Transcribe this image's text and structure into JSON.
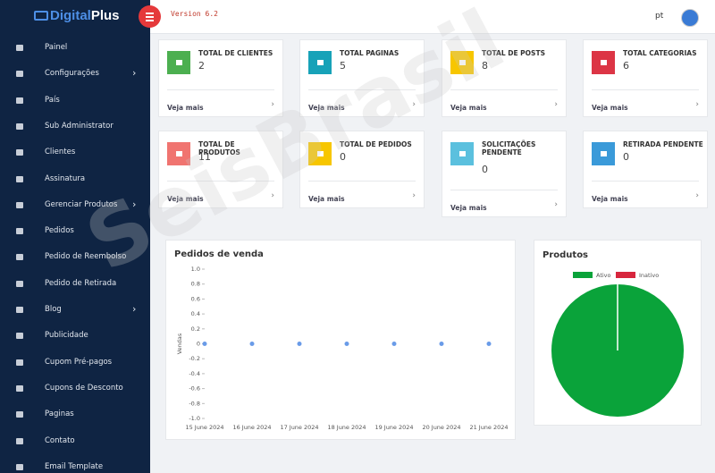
{
  "brand": {
    "name_a": "Digital",
    "name_b": "Plus"
  },
  "header": {
    "version": "Version 6.2",
    "language": "pt"
  },
  "watermark": "SeisBrasil",
  "sidebar": {
    "items": [
      {
        "label": "Painel",
        "submenu": false
      },
      {
        "label": "Configurações",
        "submenu": true
      },
      {
        "label": "País",
        "submenu": false
      },
      {
        "label": "Sub Administrator",
        "submenu": false
      },
      {
        "label": "Clientes",
        "submenu": false
      },
      {
        "label": "Assinatura",
        "submenu": false
      },
      {
        "label": "Gerenciar Produtos",
        "submenu": true
      },
      {
        "label": "Pedidos",
        "submenu": false
      },
      {
        "label": "Pedido de Reembolso",
        "submenu": false
      },
      {
        "label": "Pedido de Retirada",
        "submenu": false
      },
      {
        "label": "Blog",
        "submenu": true
      },
      {
        "label": "Publicidade",
        "submenu": false
      },
      {
        "label": "Cupom Pré-pagos",
        "submenu": false
      },
      {
        "label": "Cupons de Desconto",
        "submenu": false
      },
      {
        "label": "Paginas",
        "submenu": false
      },
      {
        "label": "Contato",
        "submenu": false
      },
      {
        "label": "Email Template",
        "submenu": false
      }
    ]
  },
  "cards": [
    {
      "title": "TOTAL DE CLIENTES",
      "value": 2,
      "link": "Veja mais",
      "color": "#4caf50"
    },
    {
      "title": "TOTAL PAGINAS",
      "value": 5,
      "link": "Veja mais",
      "color": "#17a2b8"
    },
    {
      "title": "TOTAL DE POSTS",
      "value": 8,
      "link": "Veja mais",
      "color": "#f7c600"
    },
    {
      "title": "TOTAL CATEGORIAS",
      "value": 6,
      "link": "Veja mais",
      "color": "#dc3545"
    },
    {
      "title": "TOTAL DE PRODUTOS",
      "value": 11,
      "link": "Veja mais",
      "color": "#f07470"
    },
    {
      "title": "TOTAL DE PEDIDOS",
      "value": 0,
      "link": "Veja mais",
      "color": "#f7c600"
    },
    {
      "title": "SOLICITAÇÕES PENDENTE",
      "value": 0,
      "link": "Veja mais",
      "color": "#5bc0de"
    },
    {
      "title": "RETIRADA PENDENTE",
      "value": 0,
      "link": "Veja mais",
      "color": "#3a9ad9"
    }
  ],
  "chart_data": [
    {
      "type": "line",
      "title": "Pedidos de venda",
      "y_label": "Vendas",
      "categories": [
        "15 June 2024",
        "16 June 2024",
        "17 June 2024",
        "18 June 2024",
        "19 June 2024",
        "20 June 2024",
        "21 June 2024"
      ],
      "series": [
        {
          "name": "Vendas",
          "color": "#6a9be8",
          "values": [
            0,
            0,
            0,
            0,
            0,
            0,
            0
          ]
        }
      ],
      "ylim": [
        -1,
        1
      ],
      "yticks": [
        {
          "value": 1,
          "label": "1.0"
        },
        0.8,
        0.6,
        0.4,
        0.2,
        0,
        -0.2,
        -0.4,
        -0.6,
        -0.8,
        {
          "value": -1,
          "label": "-1.0"
        }
      ]
    },
    {
      "type": "pie",
      "title": "Produtos",
      "categories": [
        "Ativo",
        "Inativo"
      ],
      "values": [
        11,
        0
      ],
      "colors": [
        "#0aa33a",
        "#d7263d"
      ]
    }
  ]
}
